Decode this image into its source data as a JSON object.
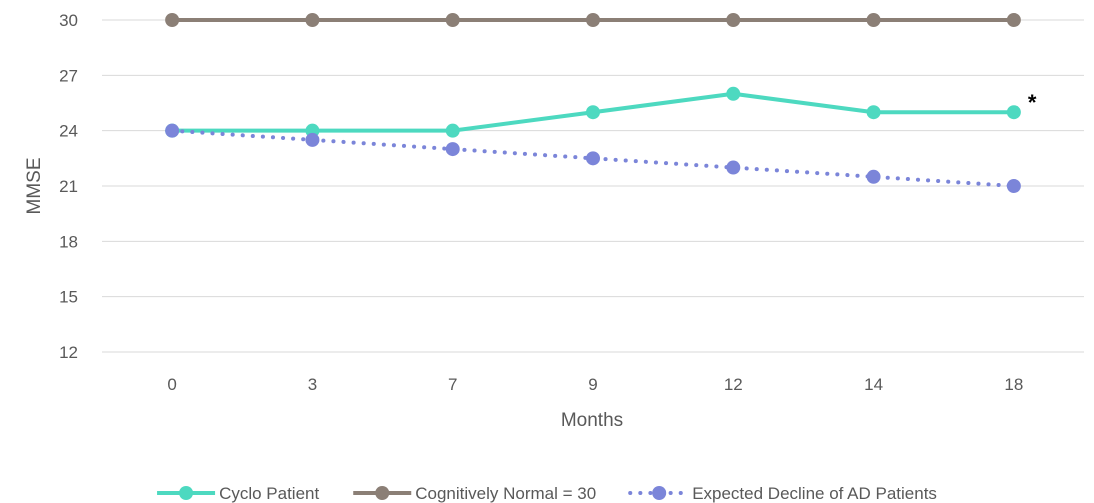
{
  "chart_data": {
    "type": "line",
    "title": "",
    "xlabel": "Months",
    "ylabel": "MMSE",
    "categories": [
      "0",
      "3",
      "7",
      "9",
      "12",
      "14",
      "18"
    ],
    "ylim": [
      12,
      30
    ],
    "yticks": [
      12,
      15,
      18,
      21,
      24,
      27,
      30
    ],
    "grid": true,
    "legend_position": "bottom",
    "series": [
      {
        "name": "Cyclo Patient",
        "values": [
          24,
          24,
          24,
          25,
          26,
          25,
          25
        ],
        "color": "#4dd9c0",
        "style": "solid"
      },
      {
        "name": "Cognitively Normal = 30",
        "values": [
          30,
          30,
          30,
          30,
          30,
          30,
          30
        ],
        "color": "#8b7f76",
        "style": "solid"
      },
      {
        "name": "Expected Decline of AD Patients",
        "values": [
          24,
          23.5,
          23,
          22.5,
          22,
          21.5,
          21
        ],
        "color": "#7b85d9",
        "style": "dotted"
      }
    ],
    "annotations": [
      {
        "text": "*",
        "series": "Cyclo Patient",
        "category": "18"
      }
    ]
  }
}
